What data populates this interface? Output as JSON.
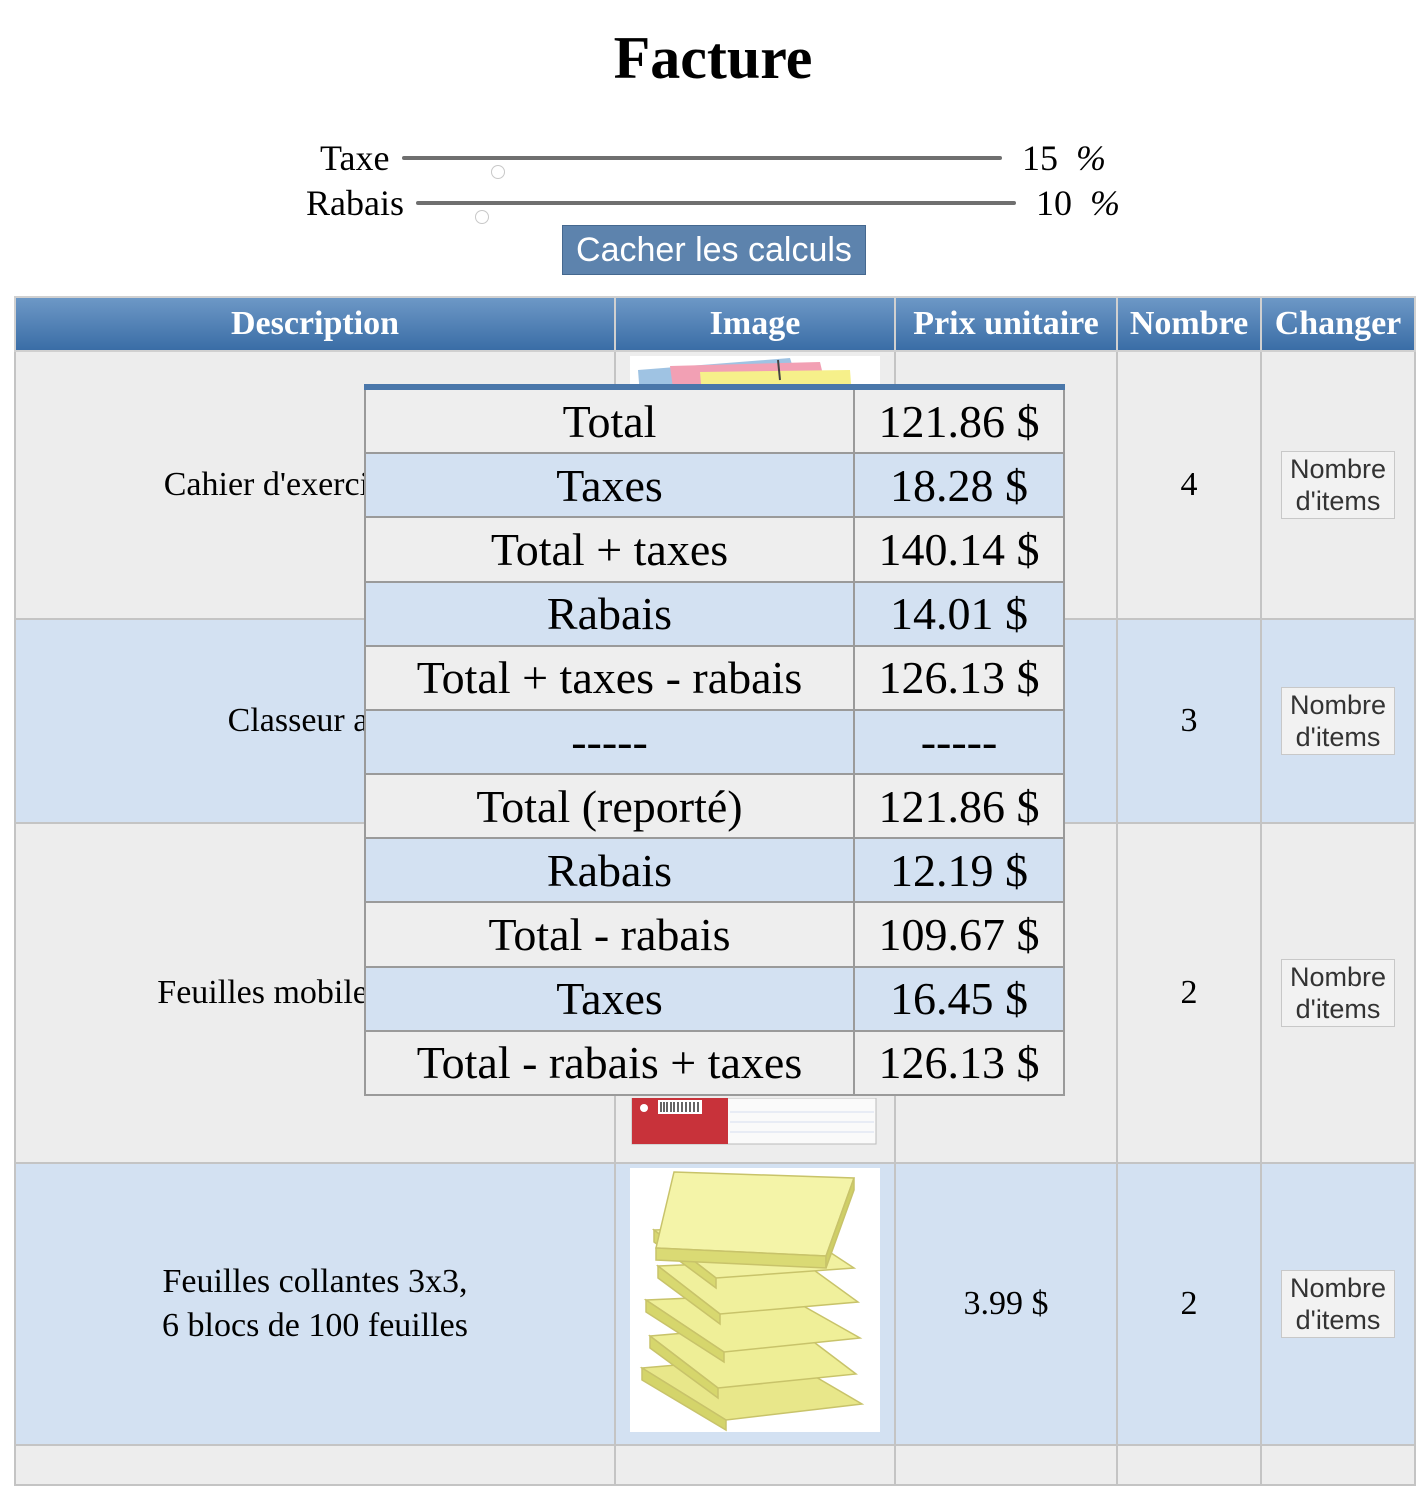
{
  "title": "Facture",
  "sliders": {
    "taxe": {
      "label": "Taxe",
      "value": "15",
      "unit": "%",
      "level_fraction": 0.16
    },
    "rabais": {
      "label": "Rabais",
      "value": "10",
      "unit": "%",
      "level_fraction": 0.11
    }
  },
  "toggle_button": "Cacher les calculs",
  "table": {
    "headers": [
      "Description",
      "Image",
      "Prix unitaire",
      "Nombre",
      "Changer"
    ],
    "rows": [
      {
        "description_lines": [
          "Cahier d'exercices sco"
        ],
        "image": "cahier-image",
        "price": "",
        "quantity": "4",
        "button": [
          "Nombre",
          "d'items"
        ]
      },
      {
        "description_lines": [
          "Classeur ann"
        ],
        "image": "classeur-image",
        "price": "",
        "quantity": "3",
        "button": [
          "Nombre",
          "d'items"
        ]
      },
      {
        "description_lines": [
          "Feuilles mobiles lignée"
        ],
        "image": "feuilles-mobiles-image",
        "price": "",
        "quantity": "2",
        "button": [
          "Nombre",
          "d'items"
        ]
      },
      {
        "description_lines": [
          "Feuilles collantes 3x3,",
          "6 blocs de 100 feuilles"
        ],
        "image": "feuilles-collantes-image",
        "price": "3.99 $",
        "quantity": "2",
        "button": [
          "Nombre",
          "d'items"
        ]
      }
    ]
  },
  "calculations": [
    {
      "label": "Total",
      "value": "121.86 $"
    },
    {
      "label": "Taxes",
      "value": "18.28 $"
    },
    {
      "label": "Total + taxes",
      "value": "140.14 $"
    },
    {
      "label": "Rabais",
      "value": "14.01 $"
    },
    {
      "label": "Total + taxes - rabais",
      "value": "126.13 $"
    },
    {
      "label": "-----",
      "value": "-----"
    },
    {
      "label": "Total (reporté)",
      "value": "121.86 $"
    },
    {
      "label": "Rabais",
      "value": "12.19 $"
    },
    {
      "label": "Total - rabais",
      "value": "109.67 $"
    },
    {
      "label": "Taxes",
      "value": "16.45 $"
    },
    {
      "label": "Total - rabais + taxes",
      "value": "126.13 $"
    }
  ],
  "colors": {
    "header_top": "#6d98c6",
    "header_bottom": "#3a6da6",
    "row_odd": "#ededed",
    "row_even": "#d3e1f2",
    "button_blue": "#5d83ad"
  }
}
